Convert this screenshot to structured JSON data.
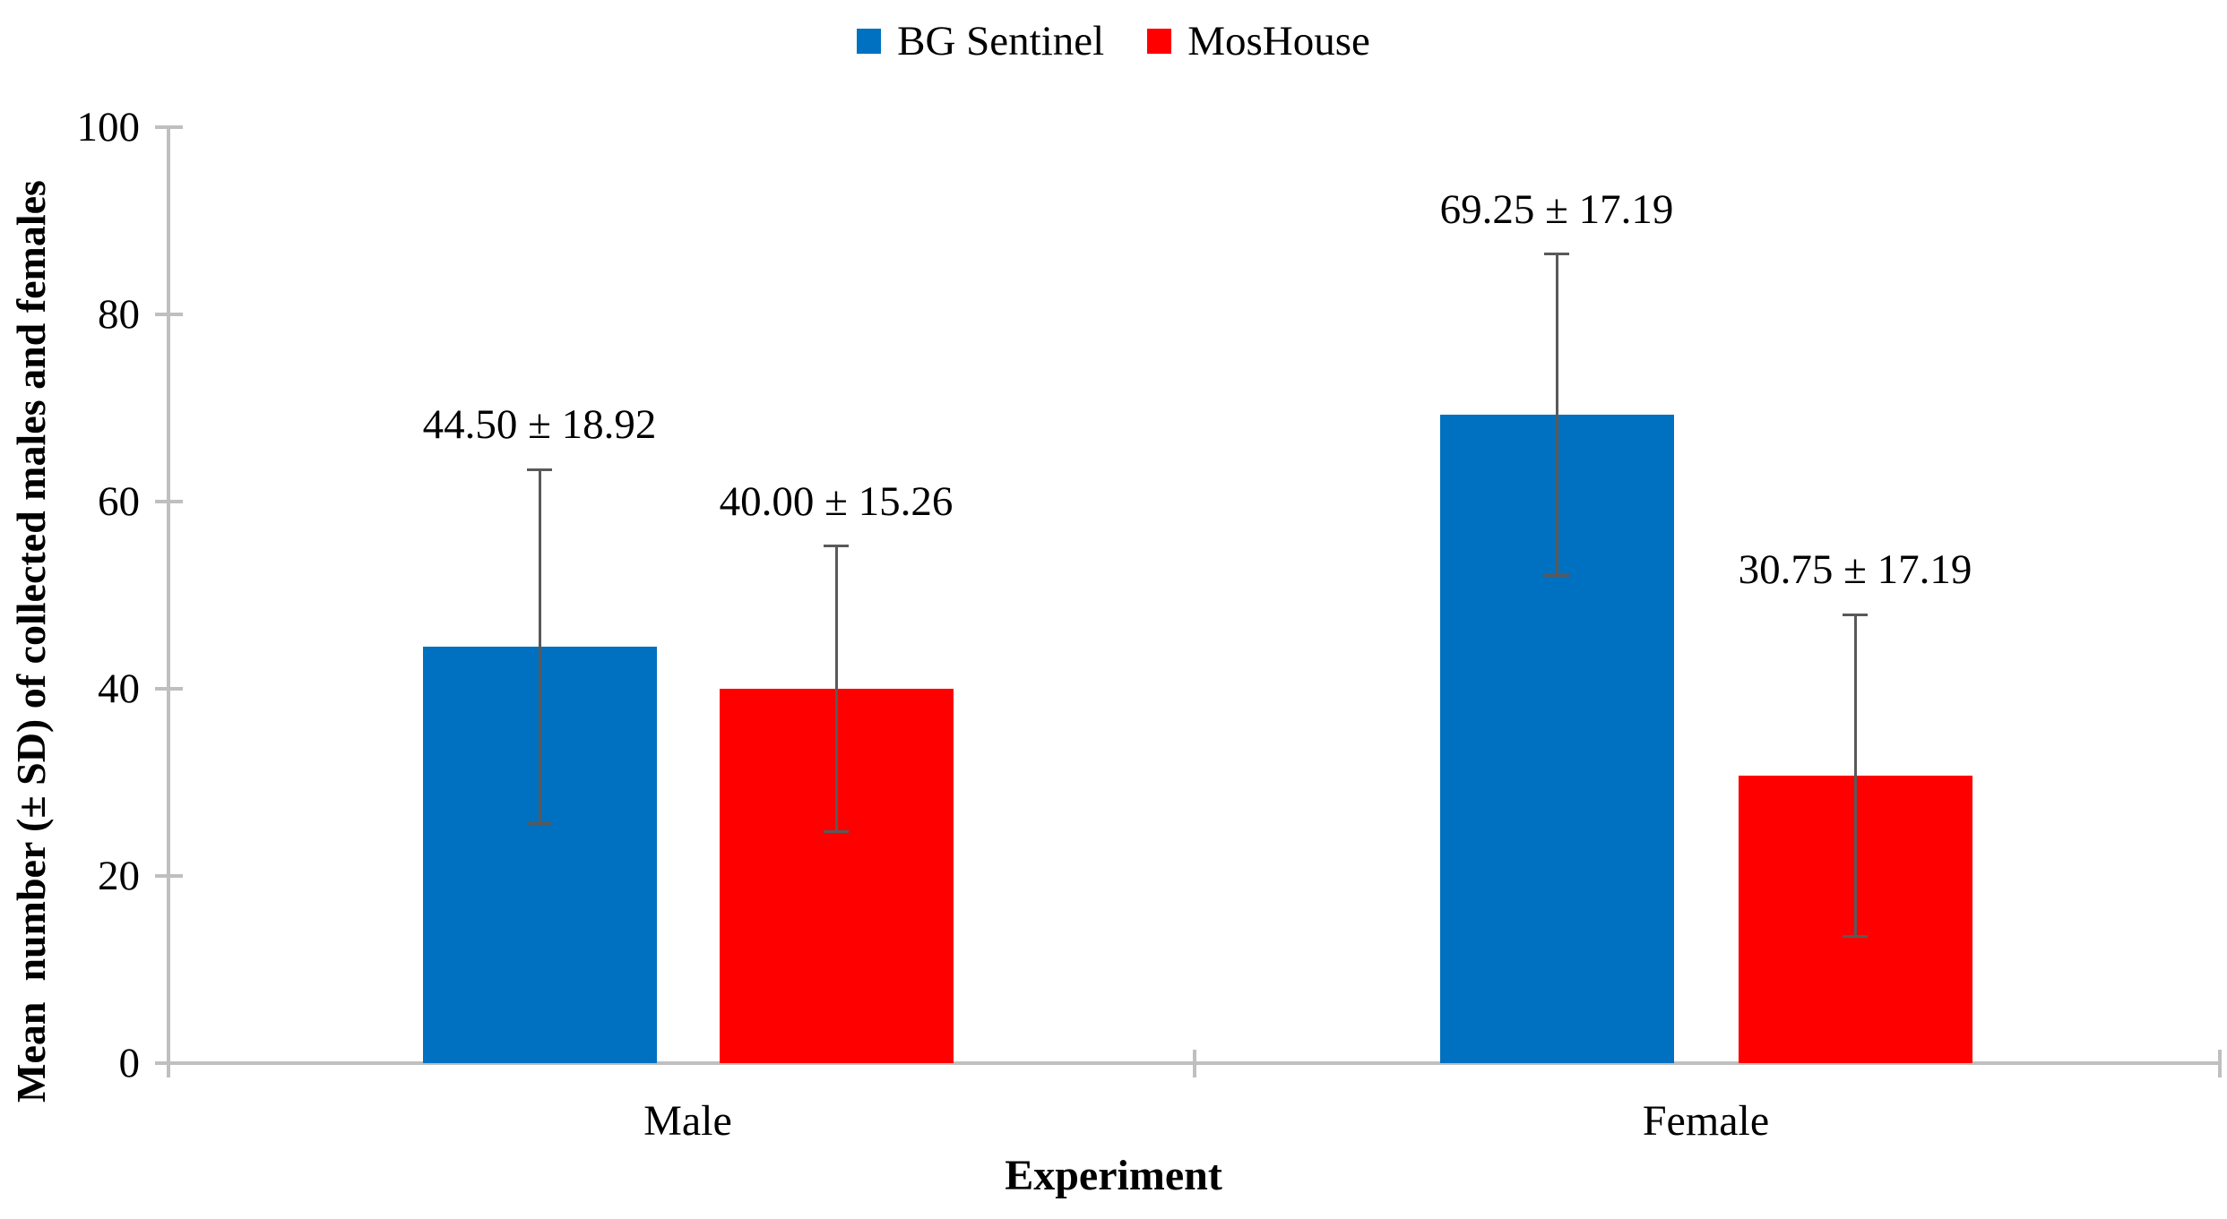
{
  "figure": {
    "background": "#ffffff",
    "text_color": "#000000"
  },
  "legend": {
    "items": [
      {
        "label": "BG Sentinel",
        "color": "#0070C0"
      },
      {
        "label": "MosHouse",
        "color": "#FE0000"
      }
    ]
  },
  "axes": {
    "y_title": "Mean  number (± SD) of collected males and females",
    "x_title": "Experiment",
    "axis_color": "#BFBFBF",
    "error_bar_color": "#595959"
  },
  "chart_data": {
    "type": "bar",
    "title": "",
    "categories": [
      "Male",
      "Female"
    ],
    "series": [
      {
        "name": "BG Sentinel",
        "color": "#0070C0",
        "values": [
          44.5,
          69.25
        ],
        "sd": [
          18.92,
          17.19
        ],
        "data_labels": [
          "44.50 ± 18.92",
          "69.25 ± 17.19"
        ]
      },
      {
        "name": "MosHouse",
        "color": "#FE0000",
        "values": [
          40.0,
          30.75
        ],
        "sd": [
          15.26,
          17.19
        ],
        "data_labels": [
          "40.00 ± 15.26",
          "30.75 ± 17.19"
        ]
      }
    ],
    "xlabel": "Experiment",
    "ylabel": "Mean  number (± SD) of collected males and females",
    "ylim": [
      0,
      100
    ],
    "yticks": [
      0,
      20,
      40,
      60,
      80,
      100
    ],
    "grid": false,
    "legend_position": "top-center",
    "error_bars": "± SD, capped, both directions"
  }
}
